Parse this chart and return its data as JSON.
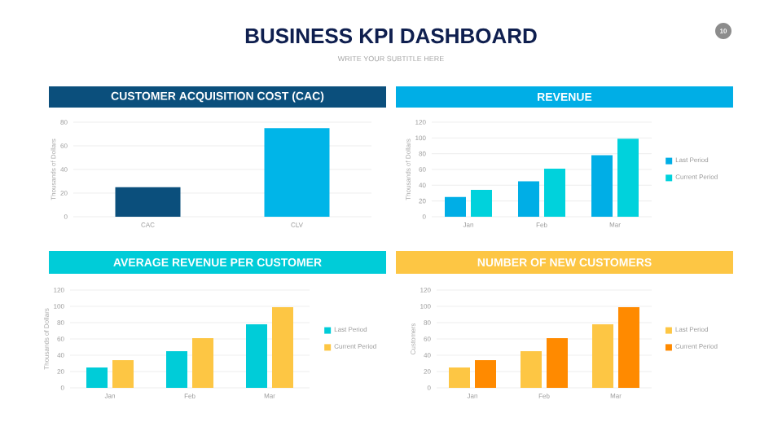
{
  "chart_data": [
    {
      "type": "other",
      "title": "BUSINESS KPI DASHBOARD",
      "subtitle": "WRITE YOUR SUBTITLE HERE",
      "annotations": [
        "10"
      ]
    },
    {
      "type": "bar",
      "title": "CUSTOMER ACQUISITION COST (CAC)",
      "ylabel": "Thousands of Dollars",
      "categories": [
        "CAC",
        "CLV"
      ],
      "values": [
        25,
        75
      ],
      "colors": [
        "#0b4f7c",
        "#00b5e8"
      ],
      "ylim": [
        0,
        80
      ],
      "yticks": [
        0,
        20,
        40,
        60,
        80
      ],
      "grid": "y"
    },
    {
      "type": "bar",
      "title": "REVENUE",
      "ylabel": "Thousands of Dollars",
      "categories": [
        "Jan",
        "Feb",
        "Mar"
      ],
      "series": [
        {
          "name": "Last Period",
          "color": "#00aee6",
          "values": [
            25,
            45,
            78
          ]
        },
        {
          "name": "Current Period",
          "color": "#00d2dc",
          "values": [
            34,
            61,
            99
          ]
        }
      ],
      "ylim": [
        0,
        120
      ],
      "yticks": [
        0,
        20,
        40,
        60,
        80,
        100,
        120
      ],
      "grid": "y",
      "legend": "right"
    },
    {
      "type": "bar",
      "title": "AVERAGE  REVENUE PER CUSTOMER",
      "ylabel": "Thousands of Dollars",
      "categories": [
        "Jan",
        "Feb",
        "Mar"
      ],
      "series": [
        {
          "name": "Last Period",
          "color": "#00ccd8",
          "values": [
            25,
            45,
            78
          ]
        },
        {
          "name": "Current Period",
          "color": "#fdc644",
          "values": [
            34,
            61,
            99
          ]
        }
      ],
      "ylim": [
        0,
        120
      ],
      "yticks": [
        0,
        20,
        40,
        60,
        80,
        100,
        120
      ],
      "grid": "y",
      "legend": "right"
    },
    {
      "type": "bar",
      "title": "NUMBER OF NEW CUSTOMERS",
      "ylabel": "Customers",
      "categories": [
        "Jan",
        "Feb",
        "Mar"
      ],
      "series": [
        {
          "name": "Last Period",
          "color": "#fdc644",
          "values": [
            25,
            45,
            78
          ]
        },
        {
          "name": "Current Period",
          "color": "#ff8a00",
          "values": [
            34,
            61,
            99
          ]
        }
      ],
      "ylim": [
        0,
        120
      ],
      "yticks": [
        0,
        20,
        40,
        60,
        80,
        100,
        120
      ],
      "grid": "y",
      "legend": "right"
    }
  ]
}
